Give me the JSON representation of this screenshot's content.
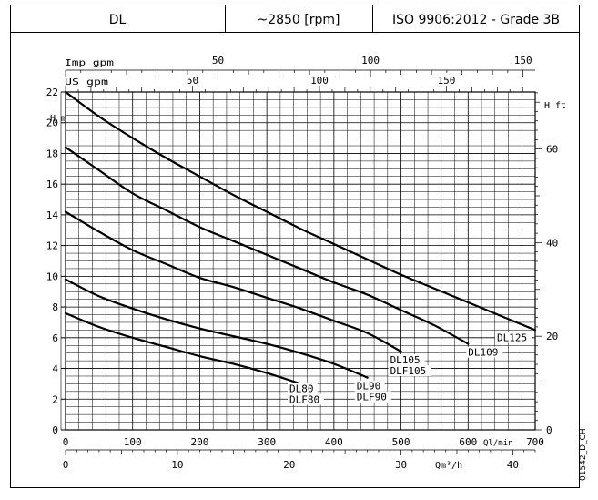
{
  "header": {
    "model": "DL",
    "speed": "~2850 [rpm]",
    "standard": "ISO 9906:2012 - Grade 3B"
  },
  "side_code": "01542_D_CH",
  "chart_data": {
    "type": "line",
    "x_primary": {
      "label": "Ql/min",
      "range": [
        0,
        700
      ],
      "ticks": [
        0,
        100,
        200,
        300,
        400,
        500,
        600,
        700
      ]
    },
    "x_secondary": {
      "label": "Qm³/h",
      "range": [
        0,
        42
      ],
      "ticks": [
        0,
        10,
        20,
        30,
        40
      ]
    },
    "x_top_imp": {
      "label": "Imp gpm",
      "range": [
        0,
        154
      ],
      "ticks": [
        50,
        100,
        150
      ]
    },
    "x_top_us": {
      "label": "US gpm",
      "range": [
        0,
        185
      ],
      "ticks": [
        50,
        100,
        150
      ]
    },
    "y_left": {
      "label": "H m",
      "range": [
        0,
        22
      ],
      "ticks": [
        0,
        2,
        4,
        6,
        8,
        10,
        12,
        14,
        16,
        18,
        20,
        22
      ]
    },
    "y_right": {
      "label": "H ft",
      "ticks": [
        0,
        20,
        40,
        60
      ]
    },
    "grid": true,
    "series": [
      {
        "labels": [
          "DL80",
          "DLF80"
        ],
        "x": [
          0,
          50,
          100,
          150,
          200,
          250,
          300,
          350
        ],
        "y": [
          7.6,
          6.7,
          6.0,
          5.4,
          4.8,
          4.3,
          3.7,
          3.0
        ]
      },
      {
        "labels": [
          "DL90",
          "DLF90"
        ],
        "x": [
          0,
          50,
          100,
          150,
          200,
          250,
          300,
          350,
          400,
          450
        ],
        "y": [
          9.8,
          8.7,
          7.9,
          7.2,
          6.6,
          6.1,
          5.6,
          5.0,
          4.3,
          3.4
        ]
      },
      {
        "labels": [
          "DL105",
          "DLF105"
        ],
        "x": [
          0,
          50,
          100,
          150,
          200,
          250,
          300,
          350,
          400,
          450,
          500
        ],
        "y": [
          14.2,
          12.9,
          11.7,
          10.8,
          9.9,
          9.3,
          8.6,
          7.9,
          7.1,
          6.3,
          5.1
        ]
      },
      {
        "labels": [
          "DL109"
        ],
        "x": [
          0,
          50,
          100,
          150,
          200,
          250,
          300,
          350,
          400,
          450,
          500,
          550,
          600
        ],
        "y": [
          18.4,
          16.9,
          15.4,
          14.3,
          13.2,
          12.3,
          11.4,
          10.5,
          9.6,
          8.8,
          7.8,
          6.8,
          5.6
        ]
      },
      {
        "labels": [
          "DL125"
        ],
        "x": [
          0,
          50,
          100,
          150,
          200,
          250,
          300,
          350,
          400,
          450,
          500,
          550,
          600,
          650,
          700
        ],
        "y": [
          22.0,
          20.4,
          19.0,
          17.7,
          16.5,
          15.3,
          14.2,
          13.1,
          12.1,
          11.1,
          10.1,
          9.2,
          8.3,
          7.4,
          6.5
        ]
      }
    ]
  }
}
